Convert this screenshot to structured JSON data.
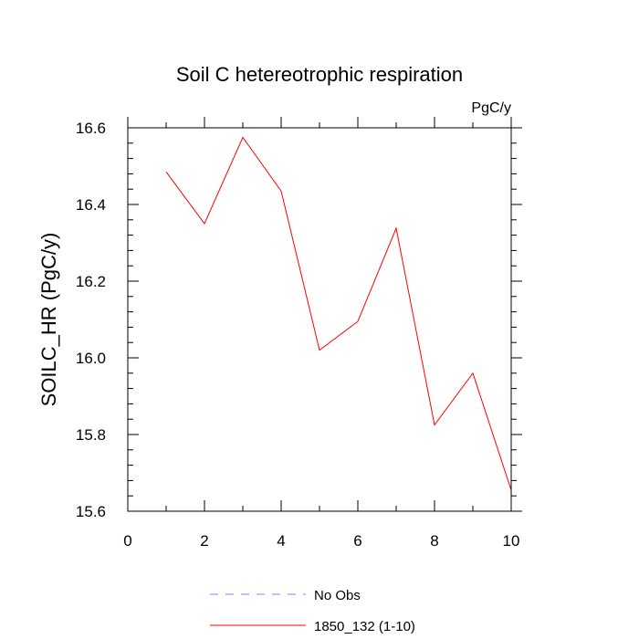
{
  "chart_data": {
    "type": "line",
    "title": "Soil C hetereotrophic respiration",
    "units_label": "PgC/y",
    "xlabel": "",
    "ylabel": "SOILC_HR  (PgC/y)",
    "xlim": [
      0,
      10
    ],
    "ylim": [
      15.6,
      16.6
    ],
    "x_major_ticks": [
      0,
      2,
      4,
      6,
      8,
      10
    ],
    "x_tick_labels": [
      "0",
      "2",
      "4",
      "6",
      "8",
      "10"
    ],
    "x_minor_ticks": [
      1,
      3,
      5,
      7,
      9
    ],
    "y_major_ticks": [
      15.6,
      15.8,
      16.0,
      16.2,
      16.4,
      16.6
    ],
    "y_tick_labels": [
      "15.6",
      "15.8",
      "16.0",
      "16.2",
      "16.4",
      "16.6"
    ],
    "y_minor_step": 0.04,
    "grid": false,
    "legend_position": "bottom-center",
    "series": [
      {
        "name": "1850_132 (1-10)",
        "color": "#ff0000",
        "style": "solid",
        "x": [
          1,
          2,
          3,
          4,
          5,
          6,
          7,
          8,
          9,
          10
        ],
        "values": [
          16.485,
          16.35,
          16.575,
          16.435,
          16.02,
          16.095,
          16.338,
          15.825,
          15.96,
          15.655
        ]
      }
    ],
    "legend": [
      {
        "label": "No Obs",
        "color": "#8080ff",
        "style": "dashed"
      },
      {
        "label": "1850_132 (1-10)",
        "color": "#ff0000",
        "style": "solid"
      }
    ]
  }
}
